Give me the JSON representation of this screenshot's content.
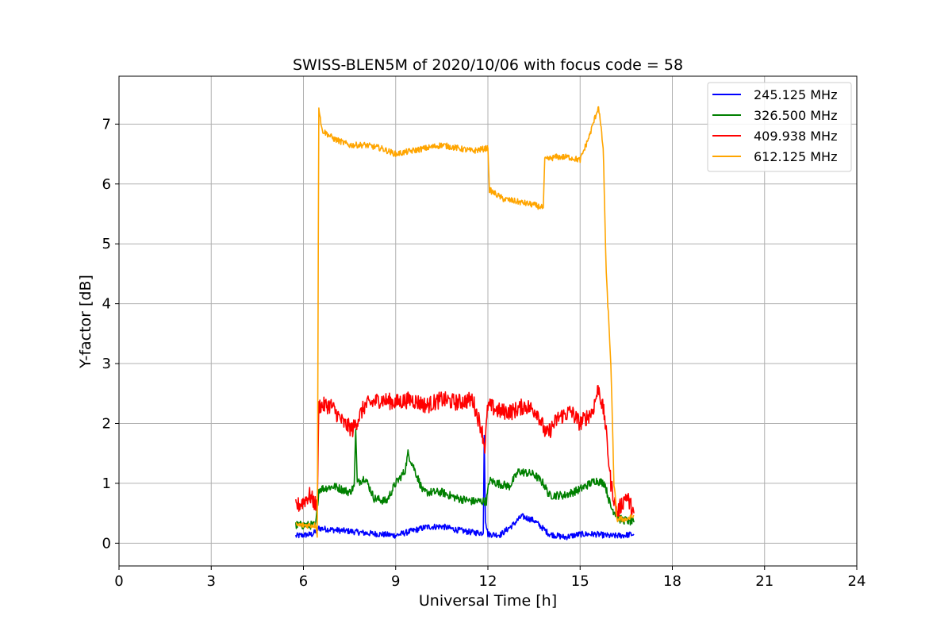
{
  "chart_data": {
    "type": "line",
    "title": "SWISS-BLEN5M of 2020/10/06 with focus code = 58",
    "xlabel": "Universal Time [h]",
    "ylabel": "Y-factor [dB]",
    "xlim": [
      0,
      24
    ],
    "ylim": [
      -0.38,
      7.8
    ],
    "xticks": [
      0,
      3,
      6,
      9,
      12,
      15,
      18,
      21,
      24
    ],
    "yticks": [
      0,
      1,
      2,
      3,
      4,
      5,
      6,
      7
    ],
    "grid": true,
    "legend_position": "top-right",
    "series": [
      {
        "name": "245.125 MHz",
        "color": "#0000ff",
        "noise": 0.05,
        "points": [
          [
            5.75,
            0.12
          ],
          [
            6.3,
            0.15
          ],
          [
            6.5,
            0.25
          ],
          [
            7.0,
            0.22
          ],
          [
            7.5,
            0.2
          ],
          [
            8.0,
            0.17
          ],
          [
            8.5,
            0.15
          ],
          [
            9.0,
            0.13
          ],
          [
            9.5,
            0.2
          ],
          [
            10.0,
            0.27
          ],
          [
            10.5,
            0.28
          ],
          [
            11.0,
            0.22
          ],
          [
            11.5,
            0.18
          ],
          [
            11.85,
            0.17
          ],
          [
            11.88,
            1.8
          ],
          [
            11.92,
            0.4
          ],
          [
            12.0,
            0.15
          ],
          [
            12.4,
            0.14
          ],
          [
            12.8,
            0.3
          ],
          [
            13.1,
            0.45
          ],
          [
            13.5,
            0.38
          ],
          [
            14.0,
            0.15
          ],
          [
            14.5,
            0.1
          ],
          [
            15.0,
            0.15
          ],
          [
            15.5,
            0.15
          ],
          [
            16.0,
            0.12
          ],
          [
            16.4,
            0.13
          ],
          [
            16.75,
            0.15
          ]
        ]
      },
      {
        "name": "326.500 MHz",
        "color": "#008000",
        "noise": 0.07,
        "points": [
          [
            5.75,
            0.3
          ],
          [
            6.4,
            0.3
          ],
          [
            6.5,
            0.9
          ],
          [
            7.0,
            0.95
          ],
          [
            7.5,
            0.85
          ],
          [
            7.65,
            0.95
          ],
          [
            7.7,
            1.9
          ],
          [
            7.75,
            1.0
          ],
          [
            8.0,
            1.1
          ],
          [
            8.3,
            0.75
          ],
          [
            8.7,
            0.7
          ],
          [
            9.0,
            1.0
          ],
          [
            9.3,
            1.2
          ],
          [
            9.4,
            1.5
          ],
          [
            9.6,
            1.25
          ],
          [
            9.9,
            0.85
          ],
          [
            10.5,
            0.85
          ],
          [
            11.0,
            0.75
          ],
          [
            11.5,
            0.7
          ],
          [
            11.95,
            0.7
          ],
          [
            12.05,
            1.05
          ],
          [
            12.3,
            1.0
          ],
          [
            12.7,
            0.95
          ],
          [
            13.0,
            1.2
          ],
          [
            13.5,
            1.15
          ],
          [
            13.8,
            1.0
          ],
          [
            14.0,
            0.8
          ],
          [
            14.5,
            0.8
          ],
          [
            15.0,
            0.9
          ],
          [
            15.5,
            1.05
          ],
          [
            15.8,
            1.0
          ],
          [
            16.0,
            0.6
          ],
          [
            16.3,
            0.4
          ],
          [
            16.75,
            0.35
          ]
        ]
      },
      {
        "name": "409.938 MHz",
        "color": "#ff0000",
        "noise": 0.14,
        "points": [
          [
            5.75,
            0.6
          ],
          [
            6.0,
            0.7
          ],
          [
            6.2,
            0.8
          ],
          [
            6.45,
            0.6
          ],
          [
            6.5,
            2.3
          ],
          [
            6.9,
            2.3
          ],
          [
            7.3,
            2.0
          ],
          [
            7.6,
            1.9
          ],
          [
            8.0,
            2.3
          ],
          [
            8.5,
            2.4
          ],
          [
            9.0,
            2.35
          ],
          [
            9.5,
            2.4
          ],
          [
            10.0,
            2.3
          ],
          [
            10.5,
            2.4
          ],
          [
            11.0,
            2.35
          ],
          [
            11.5,
            2.4
          ],
          [
            11.8,
            1.9
          ],
          [
            11.9,
            1.6
          ],
          [
            12.0,
            2.3
          ],
          [
            12.4,
            2.2
          ],
          [
            12.8,
            2.2
          ],
          [
            13.2,
            2.3
          ],
          [
            13.6,
            2.2
          ],
          [
            13.9,
            1.8
          ],
          [
            14.3,
            2.1
          ],
          [
            14.7,
            2.2
          ],
          [
            15.0,
            2.0
          ],
          [
            15.4,
            2.2
          ],
          [
            15.6,
            2.6
          ],
          [
            15.8,
            2.1
          ],
          [
            16.0,
            1.0
          ],
          [
            16.2,
            0.5
          ],
          [
            16.5,
            0.8
          ],
          [
            16.75,
            0.5
          ]
        ]
      },
      {
        "name": "612.125 MHz",
        "color": "#ffa500",
        "noise": 0.05,
        "points": [
          [
            5.75,
            0.3
          ],
          [
            6.4,
            0.3
          ],
          [
            6.45,
            0.1
          ],
          [
            6.5,
            7.3
          ],
          [
            6.6,
            6.9
          ],
          [
            7.0,
            6.75
          ],
          [
            7.5,
            6.65
          ],
          [
            8.0,
            6.65
          ],
          [
            8.5,
            6.6
          ],
          [
            9.0,
            6.5
          ],
          [
            9.5,
            6.55
          ],
          [
            10.0,
            6.6
          ],
          [
            10.5,
            6.65
          ],
          [
            11.0,
            6.6
          ],
          [
            11.5,
            6.55
          ],
          [
            12.0,
            6.6
          ],
          [
            12.05,
            5.9
          ],
          [
            12.5,
            5.75
          ],
          [
            13.0,
            5.7
          ],
          [
            13.5,
            5.65
          ],
          [
            13.8,
            5.6
          ],
          [
            13.85,
            6.4
          ],
          [
            14.2,
            6.45
          ],
          [
            14.6,
            6.45
          ],
          [
            15.0,
            6.4
          ],
          [
            15.3,
            6.8
          ],
          [
            15.6,
            7.3
          ],
          [
            15.75,
            6.6
          ],
          [
            15.85,
            4.5
          ],
          [
            16.0,
            3.0
          ],
          [
            16.1,
            1.0
          ],
          [
            16.2,
            0.4
          ],
          [
            16.5,
            0.4
          ],
          [
            16.75,
            0.45
          ]
        ]
      }
    ]
  }
}
